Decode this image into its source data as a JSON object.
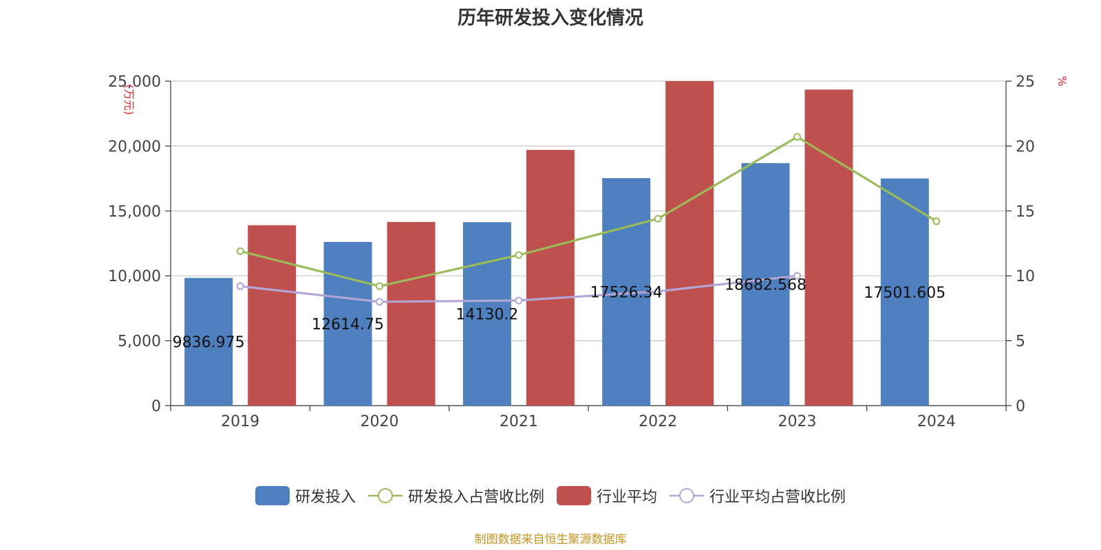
{
  "chart_data": {
    "type": "bar",
    "title": "历年研发投入变化情况",
    "categories": [
      "2019",
      "2020",
      "2021",
      "2022",
      "2023",
      "2024"
    ],
    "left_axis": {
      "unit": "(万元)",
      "min": 0,
      "max": 25000,
      "ticks": [
        "0",
        "5,000",
        "10,000",
        "15,000",
        "20,000",
        "25,000"
      ]
    },
    "right_axis": {
      "unit": "%",
      "min": 0,
      "max": 25,
      "ticks": [
        "0",
        "5",
        "10",
        "15",
        "20",
        "25"
      ]
    },
    "grid": true,
    "legend_position": "bottom",
    "series": [
      {
        "name": "研发投入",
        "type": "bar",
        "axis": "left",
        "color": "#4e7fbe",
        "values": [
          9836.975,
          12614.75,
          14130.2,
          17526.34,
          18682.568,
          17501.605
        ],
        "labels": [
          "9836.975",
          "12614.75",
          "14130.2",
          "17526.34",
          "18682.568",
          "17501.605"
        ]
      },
      {
        "name": "研发投入占营收比例",
        "type": "line",
        "axis": "right",
        "color": "#9bbb59",
        "values": [
          11.9,
          9.2,
          11.6,
          14.4,
          20.7,
          14.2
        ]
      },
      {
        "name": "行业平均",
        "type": "bar",
        "axis": "left",
        "color": "#c0504d",
        "values": [
          13900,
          14150,
          19700,
          25000,
          24350,
          null
        ]
      },
      {
        "name": "行业平均占营收比例",
        "type": "line",
        "axis": "right",
        "color": "#b3a6d6",
        "values": [
          9.2,
          8.0,
          8.1,
          8.8,
          10.0,
          null
        ]
      }
    ]
  },
  "source_note": "制图数据来自恒生聚源数据库"
}
